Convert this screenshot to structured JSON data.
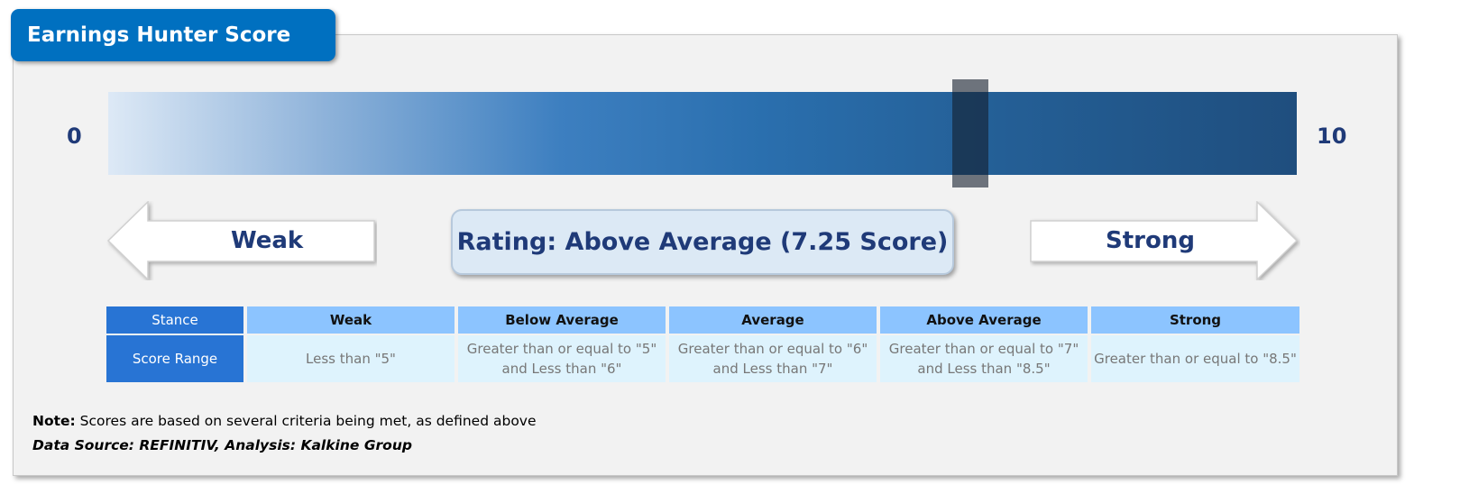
{
  "title": "Earnings Hunter Score",
  "scale": {
    "min_label": "0",
    "max_label": "10",
    "min": 0,
    "max": 10,
    "score": 7.25
  },
  "colors": {
    "title_bg": "#0070c0",
    "header_blue": "#2874d4",
    "header_light": "#8cc4ff",
    "cell_bg": "#def3fd",
    "text_navy": "#1f3a78"
  },
  "arrows": {
    "left": "Weak",
    "right": "Strong"
  },
  "rating": "Rating: Above Average (7.25 Score)",
  "table": {
    "headers": [
      "Stance",
      "Weak",
      "Below Average",
      "Average",
      "Above Average",
      "Strong"
    ],
    "row": [
      "Score Range",
      "Less than \"5\"",
      "Greater than or equal to \"5\" and Less than \"6\"",
      "Greater than or equal to \"6\" and Less than \"7\"",
      "Greater than or equal to \"7\" and Less than \"8.5\"",
      "Greater than or equal to \"8.5\""
    ]
  },
  "note": {
    "label": "Note:",
    "text": " Scores are based on several criteria being met, as defined above"
  },
  "source": "Data Source: REFINITIV, Analysis: Kalkine Group"
}
